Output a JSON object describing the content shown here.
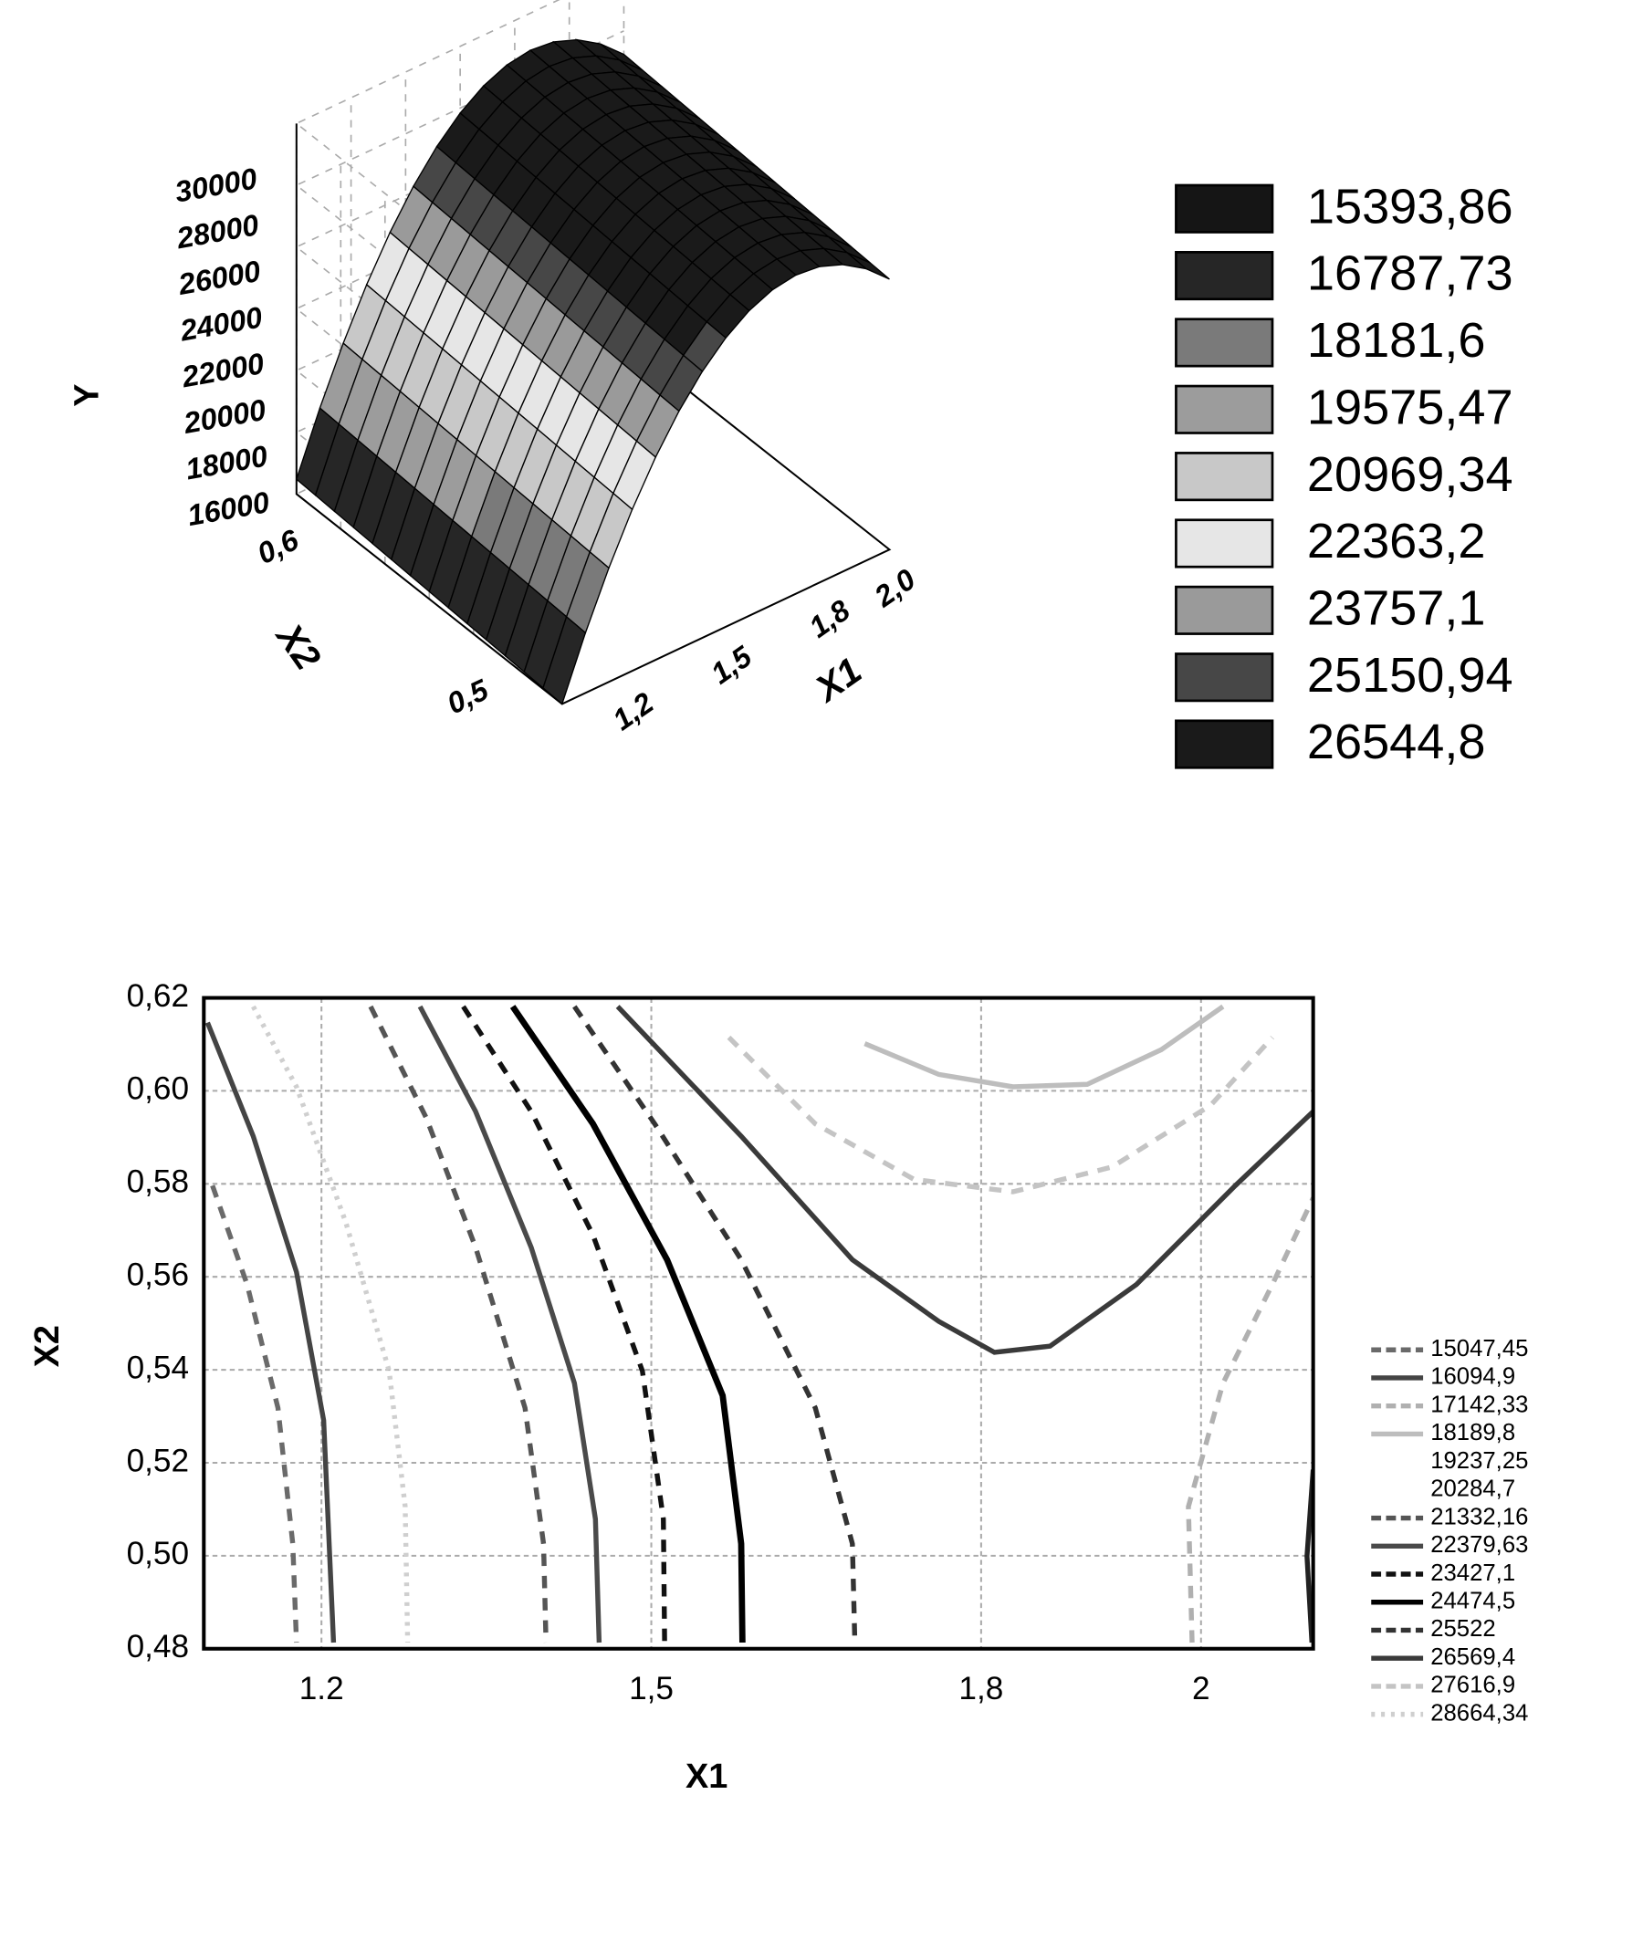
{
  "chart_data": [
    {
      "type": "surface3d",
      "zlabel": "Y",
      "xlabel": "X1",
      "ylabel": "X2",
      "zlim": [
        16000,
        30000
      ],
      "zticks": [
        16000,
        18000,
        20000,
        22000,
        24000,
        26000,
        28000,
        30000
      ],
      "xlim": [
        1.1,
        2.1
      ],
      "xticks": [
        {
          "value": 1.2,
          "label": "1,2"
        },
        {
          "value": 1.5,
          "label": "1,5"
        },
        {
          "value": 1.8,
          "label": "1,8"
        },
        {
          "value": 2.0,
          "label": "2,0"
        }
      ],
      "ylim": [
        0.48,
        0.62
      ],
      "yticks": [
        {
          "value": 0.5,
          "label": "0,5"
        },
        {
          "value": 0.6,
          "label": "0,6"
        }
      ],
      "legend": {
        "levels": [
          {
            "value": 15393.86,
            "label": "15393,86"
          },
          {
            "value": 16787.73,
            "label": "16787,73"
          },
          {
            "value": 18181.6,
            "label": "18181,6"
          },
          {
            "value": 19575.47,
            "label": "19575,47"
          },
          {
            "value": 20969.34,
            "label": "20969,34"
          },
          {
            "value": 22363.2,
            "label": "22363,2"
          },
          {
            "value": 23757.1,
            "label": "23757,1"
          },
          {
            "value": 25150.94,
            "label": "25150,94"
          },
          {
            "value": 26544.8,
            "label": "26544,8"
          }
        ],
        "colors": [
          "#151515",
          "#262626",
          "#7a7a7a",
          "#9c9c9c",
          "#c8c8c8",
          "#e6e6e6",
          "#9a9a9a",
          "#474747",
          "#1a1a1a"
        ]
      }
    },
    {
      "type": "contour",
      "xlabel": "X1",
      "ylabel": "X2",
      "grid": true,
      "xlim": [
        1.093,
        2.102
      ],
      "xticks": [
        {
          "value": 1.2,
          "label": "1.2"
        },
        {
          "value": 1.5,
          "label": "1,5"
        },
        {
          "value": 1.8,
          "label": "1,8"
        },
        2
      ],
      "ylim": [
        0.48,
        0.62
      ],
      "yticks": [
        {
          "value": 0.48,
          "label": "0,48"
        },
        {
          "value": 0.5,
          "label": "0,50"
        },
        {
          "value": 0.52,
          "label": "0,52"
        },
        {
          "value": 0.54,
          "label": "0,54"
        },
        {
          "value": 0.56,
          "label": "0,56"
        },
        {
          "value": 0.58,
          "label": "0,58"
        },
        {
          "value": 0.6,
          "label": "0,60"
        },
        {
          "value": 0.62,
          "label": "0,62"
        }
      ],
      "legend": {
        "levels": [
          {
            "value": 15047.45,
            "label": "15047,45"
          },
          {
            "value": 16094.9,
            "label": "16094,9"
          },
          {
            "value": 17142.33,
            "label": "17142,33"
          },
          {
            "value": 18189.8,
            "label": "18189,8"
          },
          {
            "value": 19237.25,
            "label": "19237,25"
          },
          {
            "value": 20284.7,
            "label": "20284,7"
          },
          {
            "value": 21332.16,
            "label": "21332,16"
          },
          {
            "value": 22379.63,
            "label": "22379,63"
          },
          {
            "value": 23427.1,
            "label": "23427,1"
          },
          {
            "value": 24474.5,
            "label": "24474,5"
          },
          {
            "value": 25522,
            "label": "25522"
          },
          {
            "value": 26569.4,
            "label": "26569,4"
          },
          {
            "value": 27616.9,
            "label": "27616,9"
          },
          {
            "value": 28664.34,
            "label": "28664,34"
          }
        ],
        "colors": [
          "#6a6a6a",
          "#444444",
          "#b0b0b0",
          "#bdbdbd",
          "#ffffff",
          "#ffffff",
          "#555555",
          "#4a4a4a",
          "#111111",
          "#000000",
          "#333333",
          "#3a3a3a",
          "#c4c4c4",
          "#cfcfcf"
        ],
        "dashes": [
          "dash",
          "solid",
          "dash",
          "solid",
          "solid",
          "solid",
          "dash",
          "solid",
          "dash",
          "solid",
          "dash",
          "solid",
          "dash",
          "dot"
        ]
      }
    }
  ]
}
